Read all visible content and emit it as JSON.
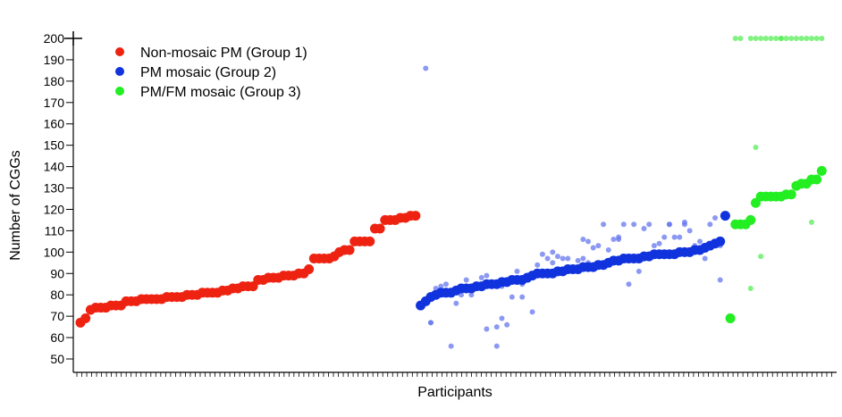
{
  "chart_data": {
    "type": "scatter",
    "title": "",
    "xlabel": "Participants",
    "ylabel": "Number of CGGs",
    "ylim": [
      50,
      200
    ],
    "yticks": [
      50,
      60,
      70,
      80,
      90,
      100,
      110,
      120,
      130,
      140,
      150,
      160,
      170,
      180,
      190,
      200
    ],
    "ytick_labels": [
      "50",
      "60",
      "70",
      "80",
      "90",
      "100",
      "110",
      "120",
      "130",
      "140",
      "150",
      "160",
      "170",
      "180",
      "190",
      "200"
    ],
    "xlim": [
      0,
      154
    ],
    "grid": false,
    "legend_position": "top-left",
    "series": [
      {
        "name": "Non-mosaic PM (Group 1)",
        "color": "#ee2211",
        "x": [
          1,
          2,
          3,
          4,
          5,
          6,
          7,
          8,
          9,
          10,
          11,
          12,
          13,
          14,
          15,
          16,
          17,
          18,
          19,
          20,
          21,
          22,
          23,
          24,
          25,
          26,
          27,
          28,
          29,
          30,
          31,
          32,
          33,
          34,
          35,
          36,
          37,
          38,
          39,
          40,
          41,
          42,
          43,
          44,
          45,
          46,
          47,
          48,
          49,
          50,
          51,
          52,
          53,
          54,
          55,
          56,
          57,
          58,
          59,
          60,
          61,
          62,
          63,
          64,
          65,
          66,
          67
        ],
        "values": [
          67,
          69,
          73,
          74,
          74,
          74,
          75,
          75,
          75,
          77,
          77,
          77,
          78,
          78,
          78,
          78,
          78,
          79,
          79,
          79,
          79,
          80,
          80,
          80,
          81,
          81,
          81,
          81,
          82,
          82,
          83,
          83,
          84,
          84,
          84,
          87,
          87,
          88,
          88,
          88,
          89,
          89,
          89,
          90,
          90,
          92,
          97,
          97,
          97,
          97,
          98,
          100,
          101,
          101,
          105,
          105,
          105,
          105,
          111,
          111,
          115,
          115,
          115,
          116,
          116,
          117,
          117
        ]
      },
      {
        "name": "PM mosaic (Group 2)",
        "color": "#1133dd",
        "x": [
          68,
          69,
          70,
          71,
          72,
          73,
          74,
          75,
          76,
          77,
          78,
          79,
          80,
          81,
          82,
          83,
          84,
          85,
          86,
          87,
          88,
          89,
          90,
          91,
          92,
          93,
          94,
          95,
          96,
          97,
          98,
          99,
          100,
          101,
          102,
          103,
          104,
          105,
          106,
          107,
          108,
          109,
          110,
          111,
          112,
          113,
          114,
          115,
          116,
          117,
          118,
          119,
          120,
          121,
          122,
          123,
          124,
          125,
          126,
          127,
          128
        ],
        "values": [
          75,
          77,
          79,
          80,
          81,
          81,
          81,
          82,
          83,
          83,
          83,
          84,
          84,
          85,
          85,
          85,
          86,
          86,
          87,
          87,
          87,
          88,
          89,
          90,
          90,
          90,
          90,
          91,
          91,
          92,
          92,
          92,
          93,
          93,
          93,
          94,
          94,
          95,
          96,
          96,
          97,
          97,
          97,
          97,
          98,
          98,
          99,
          99,
          99,
          99,
          99,
          100,
          100,
          100,
          101,
          101,
          102,
          103,
          104,
          105,
          117
        ]
      },
      {
        "name": "PM/FM mosaic (Group 3)",
        "color": "#22ee22",
        "x": [
          129,
          130,
          131,
          132,
          133,
          134,
          135,
          136,
          137,
          138,
          139,
          140,
          141,
          142,
          143,
          144,
          145,
          146,
          147
        ],
        "values": [
          69,
          113,
          113,
          113,
          115,
          123,
          126,
          126,
          126,
          126,
          126,
          127,
          127,
          131,
          132,
          132,
          134,
          134,
          138
        ]
      }
    ],
    "secondary_alleles": [
      {
        "series": "PM mosaic (Group 2)",
        "color": "#6677ee",
        "x": [
          69,
          70,
          71,
          72,
          74,
          75,
          76,
          77,
          78,
          79,
          80,
          81,
          82,
          83,
          84,
          85,
          86,
          87,
          88,
          89,
          90,
          91,
          92,
          93,
          94,
          95,
          96,
          97,
          98,
          99,
          100,
          101,
          102,
          103,
          104,
          105,
          106,
          107,
          108,
          109,
          110,
          111,
          112,
          113,
          114,
          115,
          116,
          117,
          118,
          119,
          120,
          121,
          122,
          123,
          124,
          125,
          126,
          127,
          70,
          73,
          75,
          81,
          83,
          84,
          88,
          94,
          100,
          101,
          107,
          111,
          117,
          120,
          124,
          127
        ],
        "values": [
          186,
          67,
          83,
          84,
          56,
          82,
          80,
          87,
          80,
          84,
          88,
          89,
          86,
          65,
          69,
          66,
          79,
          91,
          85,
          88,
          72,
          94,
          99,
          97,
          95,
          98,
          97,
          97,
          93,
          96,
          106,
          105,
          102,
          103,
          113,
          101,
          106,
          106,
          113,
          85,
          113,
          91,
          111,
          113,
          103,
          104,
          107,
          113,
          107,
          107,
          113,
          110,
          103,
          105,
          97,
          113,
          116,
          87,
          67,
          85,
          76,
          64,
          56,
          84,
          79,
          100,
          97,
          95,
          107,
          97,
          113,
          114,
          103,
          103
        ],
        "opacity_note": "lighter / fainter markers"
      },
      {
        "series": "PM/FM mosaic (Group 3)",
        "color": "#55ee55",
        "x": [
          130,
          131,
          133,
          134,
          135,
          136,
          137,
          138,
          139,
          140,
          141,
          142,
          143,
          144,
          145,
          146,
          147,
          134,
          135,
          133,
          139,
          145
        ],
        "values": [
          200,
          200,
          200,
          200,
          200,
          200,
          200,
          200,
          200,
          200,
          200,
          200,
          200,
          200,
          200,
          200,
          200,
          149,
          98,
          83,
          200,
          114
        ],
        "opacity_note": "lighter / fainter markers"
      }
    ]
  }
}
